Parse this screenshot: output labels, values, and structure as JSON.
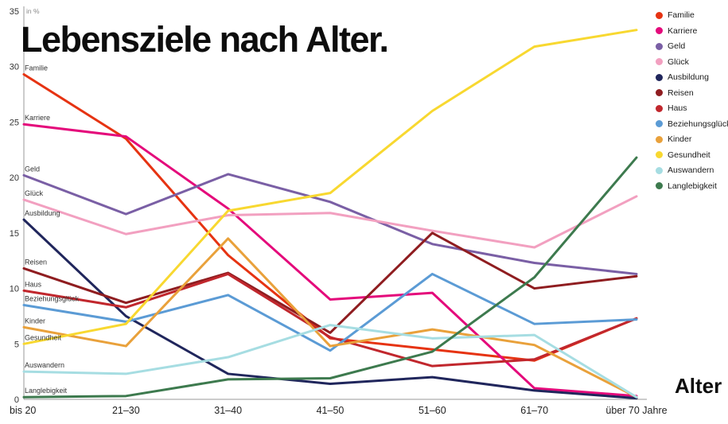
{
  "title": "Lebensziele nach Alter.",
  "x_axis_label": "Alter",
  "y_unit": "in %",
  "chart_data": {
    "type": "line",
    "categories": [
      "bis 20",
      "21–30",
      "31–40",
      "41–50",
      "51–60",
      "61–70",
      "über 70 Jahre"
    ],
    "ylim": [
      0,
      35
    ],
    "yticks": [
      0,
      5,
      10,
      15,
      20,
      25,
      30,
      35
    ],
    "grid": false,
    "legend_position": "top-right",
    "series": [
      {
        "name": "Familie",
        "color": "#e63312",
        "values": [
          29.3,
          23.5,
          13.0,
          5.5,
          4.5,
          3.5,
          7.3
        ]
      },
      {
        "name": "Karriere",
        "color": "#e40a7b",
        "values": [
          24.8,
          23.7,
          17.2,
          9.0,
          9.6,
          1.0,
          0.3
        ]
      },
      {
        "name": "Geld",
        "color": "#7a5fa5",
        "values": [
          20.2,
          16.7,
          20.3,
          17.8,
          14.0,
          12.3,
          11.3
        ]
      },
      {
        "name": "Glück",
        "color": "#f2a0c0",
        "values": [
          18.0,
          14.9,
          16.6,
          16.8,
          15.2,
          13.7,
          18.3
        ]
      },
      {
        "name": "Ausbildung",
        "color": "#20265c",
        "values": [
          16.2,
          7.5,
          2.3,
          1.4,
          2.0,
          0.8,
          0.1
        ]
      },
      {
        "name": "Reisen",
        "color": "#8f1d20",
        "values": [
          11.8,
          8.7,
          11.4,
          6.0,
          15.0,
          10.0,
          11.1
        ]
      },
      {
        "name": "Haus",
        "color": "#c1272d",
        "values": [
          9.8,
          8.3,
          11.3,
          5.6,
          3.0,
          3.6,
          7.3
        ]
      },
      {
        "name": "Beziehungsglück",
        "color": "#5b9bd5",
        "values": [
          8.5,
          7.0,
          9.4,
          4.4,
          11.3,
          6.8,
          7.2
        ]
      },
      {
        "name": "Kinder",
        "color": "#e9a13b",
        "values": [
          6.5,
          4.8,
          14.5,
          4.8,
          6.3,
          4.9,
          0.2
        ]
      },
      {
        "name": "Gesundheit",
        "color": "#f8d830",
        "values": [
          5.0,
          6.8,
          17.0,
          18.6,
          26.0,
          31.8,
          33.3
        ]
      },
      {
        "name": "Auswandern",
        "color": "#a6dde2",
        "values": [
          2.5,
          2.3,
          3.8,
          6.7,
          5.5,
          5.8,
          0.2
        ]
      },
      {
        "name": "Langlebigkeit",
        "color": "#3d7a4e",
        "values": [
          0.2,
          0.3,
          1.8,
          1.9,
          4.3,
          11.0,
          21.8
        ]
      }
    ]
  }
}
